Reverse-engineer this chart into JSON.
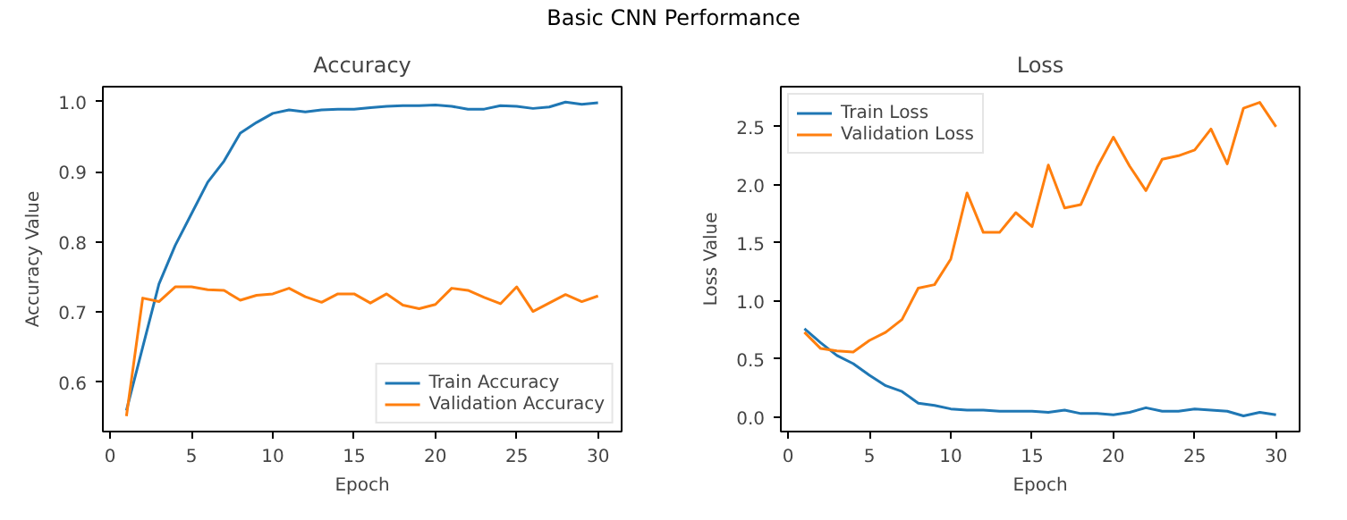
{
  "chart_data": [
    {
      "type": "other",
      "title": "Basic CNN Performance"
    },
    {
      "type": "line",
      "title": "Accuracy",
      "xlabel": "Epoch",
      "ylabel": "Accuracy Value",
      "x": [
        1,
        2,
        3,
        4,
        5,
        6,
        7,
        8,
        9,
        10,
        11,
        12,
        13,
        14,
        15,
        16,
        17,
        18,
        19,
        20,
        21,
        22,
        23,
        24,
        25,
        26,
        27,
        28,
        29,
        30
      ],
      "series": [
        {
          "name": "Train Accuracy",
          "color": "#1f77b4",
          "values": [
            0.56,
            0.65,
            0.74,
            0.795,
            0.84,
            0.885,
            0.915,
            0.955,
            0.97,
            0.983,
            0.988,
            0.985,
            0.988,
            0.989,
            0.989,
            0.991,
            0.993,
            0.994,
            0.994,
            0.995,
            0.993,
            0.989,
            0.989,
            0.994,
            0.993,
            0.99,
            0.992,
            0.999,
            0.996,
            0.998
          ]
        },
        {
          "name": "Validation Accuracy",
          "color": "#ff7f0e",
          "values": [
            0.552,
            0.72,
            0.715,
            0.736,
            0.736,
            0.732,
            0.731,
            0.717,
            0.724,
            0.726,
            0.734,
            0.722,
            0.714,
            0.726,
            0.726,
            0.713,
            0.726,
            0.71,
            0.705,
            0.711,
            0.734,
            0.731,
            0.721,
            0.712,
            0.736,
            0.701,
            0.713,
            0.725,
            0.715,
            0.723
          ]
        }
      ],
      "xlim": [
        -0.45,
        31.45
      ],
      "xticks": [
        0,
        5,
        10,
        15,
        20,
        25,
        30
      ],
      "ylim": [
        0.53,
        1.021
      ],
      "yticks": [
        0.6,
        0.7,
        0.8,
        0.9,
        {
          "value": 1,
          "label": "1.0"
        }
      ],
      "grid": false,
      "legend": "bottom right"
    },
    {
      "type": "line",
      "title": "Loss",
      "xlabel": "Epoch",
      "ylabel": "Loss Value",
      "x": [
        1,
        2,
        3,
        4,
        5,
        6,
        7,
        8,
        9,
        10,
        11,
        12,
        13,
        14,
        15,
        16,
        17,
        18,
        19,
        20,
        21,
        22,
        23,
        24,
        25,
        26,
        27,
        28,
        29,
        30
      ],
      "series": [
        {
          "name": "Train Loss",
          "color": "#1f77b4",
          "values": [
            0.76,
            0.64,
            0.53,
            0.46,
            0.36,
            0.27,
            0.22,
            0.12,
            0.1,
            0.07,
            0.06,
            0.06,
            0.05,
            0.05,
            0.05,
            0.04,
            0.06,
            0.03,
            0.03,
            0.02,
            0.04,
            0.08,
            0.05,
            0.05,
            0.07,
            0.06,
            0.05,
            0.01,
            0.04,
            0.02
          ]
        },
        {
          "name": "Validation Loss",
          "color": "#ff7f0e",
          "values": [
            0.73,
            0.59,
            0.57,
            0.56,
            0.66,
            0.73,
            0.84,
            1.11,
            1.14,
            1.36,
            1.93,
            1.59,
            1.59,
            1.76,
            1.64,
            2.17,
            1.8,
            1.83,
            2.15,
            2.41,
            2.16,
            1.95,
            2.22,
            2.25,
            2.3,
            2.48,
            2.18,
            2.66,
            2.71,
            2.5
          ]
        }
      ],
      "xlim": [
        -0.45,
        31.45
      ],
      "xticks": [
        0,
        5,
        10,
        15,
        20,
        25,
        30
      ],
      "ylim": [
        -0.125,
        2.845
      ],
      "yticks": [
        {
          "value": 0,
          "label": "0.0"
        },
        0.5,
        {
          "value": 1,
          "label": "1.0"
        },
        1.5,
        {
          "value": 2,
          "label": "2.0"
        },
        2.5
      ],
      "grid": false,
      "legend": "top left"
    }
  ]
}
